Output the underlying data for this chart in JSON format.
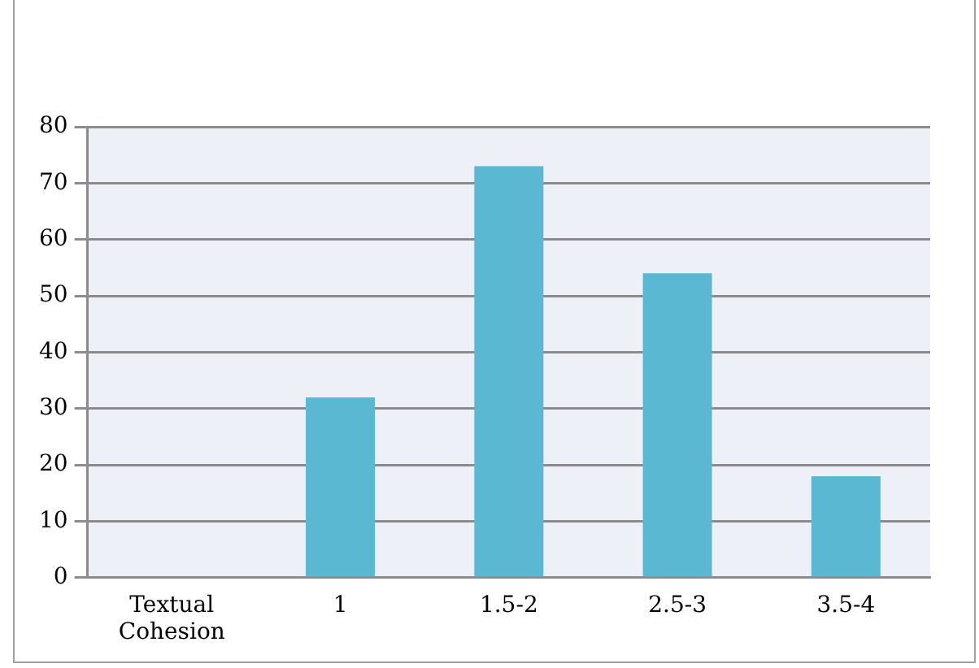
{
  "chart_data": {
    "type": "bar",
    "categories": [
      "Textual Cohesion",
      "1",
      "1.5-2",
      "2.5-3",
      "3.5-4"
    ],
    "values": [
      null,
      32,
      73,
      54,
      18
    ],
    "color": "#5bb8d3",
    "ylim": [
      0,
      80
    ],
    "yticks": [
      0,
      10,
      20,
      30,
      40,
      50,
      60,
      70,
      80
    ],
    "grid": "y",
    "legend": false
  }
}
